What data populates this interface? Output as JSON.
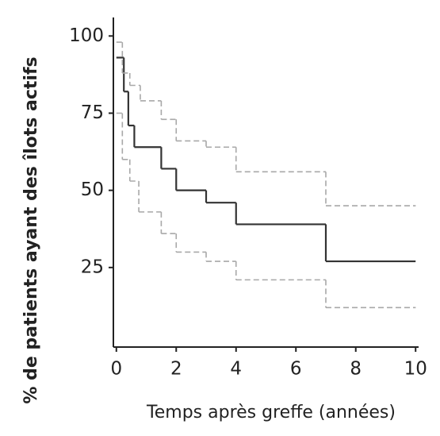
{
  "chart_data": {
    "type": "step",
    "x_label": "Temps après greffe (années)",
    "y_label": "% de patients ayant des îlots actifs",
    "xlim": [
      -0.1,
      10.1
    ],
    "ylim": [
      0,
      106
    ],
    "xticks": [
      0,
      2,
      4,
      6,
      8,
      10
    ],
    "yticks": [
      25,
      50,
      75,
      100
    ],
    "grid": false,
    "series": [
      {
        "color": "#333333",
        "dash": false,
        "x": [
          0,
          0.25,
          0.4,
          0.6,
          1.5,
          2,
          3,
          4,
          7,
          10
        ],
        "values": [
          93,
          82,
          71,
          64,
          57,
          50,
          46,
          39,
          27,
          27
        ]
      },
      {
        "color": "#a8a8a8",
        "dash": true,
        "x": [
          0,
          0.2,
          0.45,
          0.8,
          1.5,
          2,
          3,
          4,
          7,
          10
        ],
        "values": [
          98,
          88,
          84,
          79,
          73,
          66,
          64,
          56,
          45,
          45
        ]
      },
      {
        "color": "#a8a8a8",
        "dash": true,
        "x": [
          0,
          0.2,
          0.45,
          0.75,
          1.5,
          2,
          3,
          4,
          7,
          10
        ],
        "values": [
          75,
          60,
          53,
          43,
          36,
          30,
          27,
          21,
          12,
          12
        ]
      }
    ]
  }
}
